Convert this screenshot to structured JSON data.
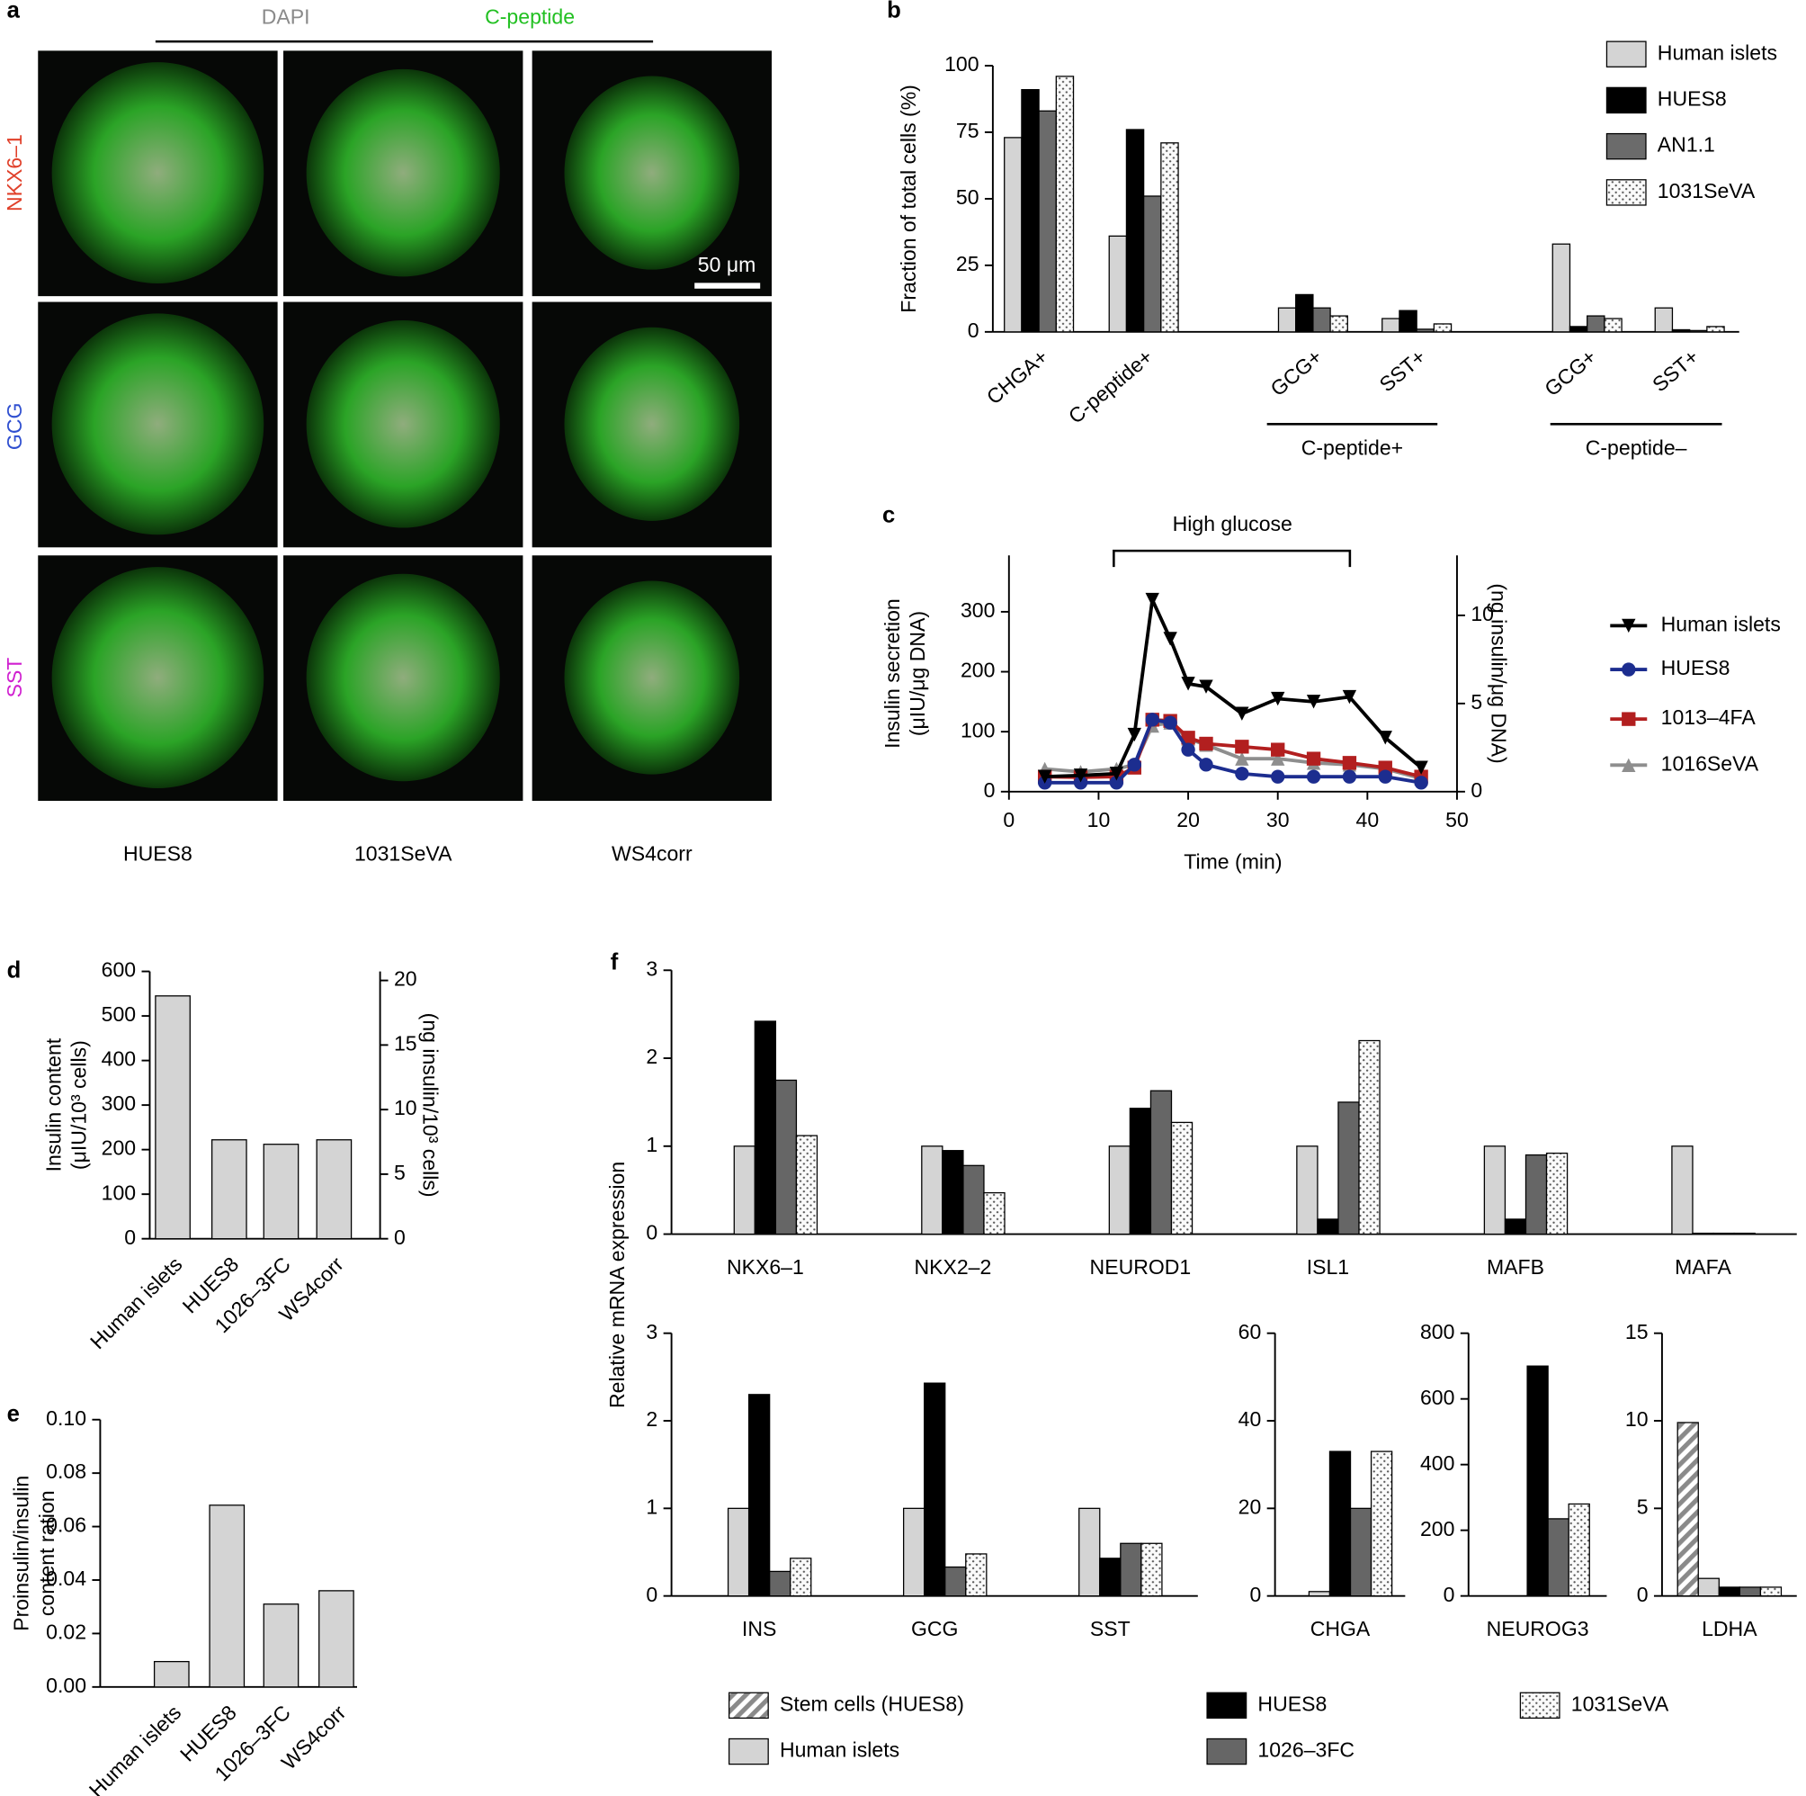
{
  "panel_a": {
    "label": "a",
    "headers": [
      "DAPI",
      "C-peptide"
    ],
    "rows": [
      "NKX6–1",
      "GCG",
      "SST"
    ],
    "columns": [
      "HUES8",
      "1031SeVA",
      "WS4corr"
    ],
    "scale_bar": "50 μm"
  },
  "chart_data": [
    {
      "type": "bar",
      "label": "b",
      "ylabel": "Fraction of  total cells (%)",
      "categories": [
        "CHGA+",
        "C-peptide+",
        "GCG+",
        "SST+",
        "GCG+",
        "SST+"
      ],
      "group_labels": [
        "C-peptide+",
        "C-peptide–"
      ],
      "ylim": [
        0,
        100
      ],
      "yticks": [
        0,
        25,
        50,
        75,
        100
      ],
      "series": [
        {
          "name": "Human islets",
          "color": "#d4d4d4",
          "values": [
            73,
            36,
            9,
            5,
            33,
            9
          ]
        },
        {
          "name": "HUES8",
          "color": "#000000",
          "values": [
            91,
            76,
            14,
            8,
            2,
            0.8
          ]
        },
        {
          "name": "AN1.1",
          "color": "#6b6b6b",
          "values": [
            83,
            51,
            9,
            1,
            6,
            0.5
          ]
        },
        {
          "name": "1031SeVA",
          "color": "#fafafa",
          "pattern": "dots",
          "values": [
            96,
            71,
            6,
            3,
            5,
            2
          ]
        }
      ]
    },
    {
      "type": "line",
      "label": "c",
      "annotation": "High glucose",
      "xlabel": "Time (min)",
      "ylabel": [
        "Insulin secretion",
        "(μIU/μg DNA)"
      ],
      "y2label": "(ng insulin/μg DNA)",
      "x": [
        4,
        8,
        12,
        14,
        16,
        18,
        20,
        22,
        26,
        30,
        34,
        38,
        42,
        46
      ],
      "xlim": [
        0,
        50
      ],
      "xticks": [
        0,
        10,
        20,
        30,
        40,
        50
      ],
      "ylim": [
        0,
        394
      ],
      "yticks": [
        0,
        100,
        200,
        300
      ],
      "y2lim": [
        0,
        13.4
      ],
      "y2ticks": [
        0,
        5,
        10
      ],
      "series": [
        {
          "name": "Human islets",
          "color": "#000000",
          "marker": "v",
          "values": [
            25,
            27,
            30,
            95,
            320,
            255,
            180,
            175,
            130,
            155,
            150,
            158,
            90,
            40
          ]
        },
        {
          "name": "HUES8",
          "color": "#1c2d8f",
          "marker": "o",
          "values": [
            15,
            15,
            15,
            45,
            120,
            115,
            70,
            45,
            30,
            25,
            25,
            25,
            25,
            15
          ]
        },
        {
          "name": "1013–4FA",
          "color": "#b21f1f",
          "marker": "s",
          "values": [
            25,
            24,
            25,
            40,
            120,
            118,
            90,
            80,
            75,
            70,
            55,
            48,
            40,
            25
          ]
        },
        {
          "name": "1016SeVA",
          "color": "#8e8e8e",
          "marker": "^",
          "values": [
            38,
            33,
            38,
            45,
            110,
            115,
            88,
            78,
            55,
            55,
            48,
            45,
            38,
            22
          ]
        }
      ]
    },
    {
      "type": "bar",
      "label": "d",
      "ylabel": [
        "Insulin content",
        "(μIU/10³ cells)"
      ],
      "y2label": "(ng insulin/10³ cells)",
      "categories": [
        "Human islets",
        "HUES8",
        "1026–3FC",
        "WS4corr"
      ],
      "ylim": [
        0,
        600
      ],
      "yticks": [
        0,
        100,
        200,
        300,
        400,
        500,
        600
      ],
      "y2lim": [
        0,
        20.7
      ],
      "y2ticks": [
        0,
        5,
        10,
        15,
        20
      ],
      "series": [
        {
          "color": "#d4d4d4",
          "values": [
            545,
            222,
            212,
            222
          ]
        }
      ]
    },
    {
      "type": "bar",
      "label": "e",
      "ylabel": [
        "Proinsulin/insulin",
        "content ration"
      ],
      "categories": [
        "Human islets",
        "HUES8",
        "1026–3FC",
        "WS4corr"
      ],
      "ylim": [
        0,
        0.1
      ],
      "yticks": [
        {
          "value": 0,
          "label": "0.00"
        },
        {
          "value": 0.02,
          "label": "0.02"
        },
        {
          "value": 0.04,
          "label": "0.04"
        },
        {
          "value": 0.06,
          "label": "0.06"
        },
        {
          "value": 0.08,
          "label": "0.08"
        },
        {
          "value": 0.1,
          "label": "0.10"
        }
      ],
      "series": [
        {
          "color": "#d4d4d4",
          "values": [
            0.0095,
            0.068,
            0.031,
            0.036
          ]
        }
      ]
    },
    {
      "type": "bar",
      "label": "f",
      "ylabel": "Relative mRNA expression",
      "categories": [
        "NKX6–1",
        "NKX2–2",
        "NEUROD1",
        "ISL1",
        "MAFB",
        "MAFA"
      ],
      "ylim": [
        0,
        3
      ],
      "yticks": [
        0,
        1,
        2,
        3
      ],
      "series": [
        {
          "name": "Stem cells (HUES8)",
          "color": "#ffffff",
          "pattern": "hatch",
          "values": [
            0,
            0,
            0,
            0,
            0,
            0
          ]
        },
        {
          "name": "Human islets",
          "color": "#d4d4d4",
          "values": [
            1,
            1,
            1,
            1,
            1,
            1
          ]
        },
        {
          "name": "HUES8",
          "color": "#000000",
          "values": [
            2.42,
            0.95,
            1.43,
            0.17,
            0.17,
            0.01
          ]
        },
        {
          "name": "1026–3FC",
          "color": "#666666",
          "values": [
            1.75,
            0.78,
            1.63,
            1.5,
            0.9,
            0.01
          ]
        },
        {
          "name": "1031SeVA",
          "color": "#fafafa",
          "pattern": "dots",
          "values": [
            1.12,
            0.47,
            1.27,
            2.2,
            0.92,
            0.01
          ]
        }
      ]
    },
    {
      "type": "bar",
      "categories": [
        "INS",
        "GCG",
        "SST"
      ],
      "ylim": [
        0,
        3
      ],
      "yticks": [
        0,
        1,
        2,
        3
      ],
      "series": [
        {
          "color": "#ffffff",
          "pattern": "hatch",
          "values": [
            0,
            0,
            0
          ]
        },
        {
          "color": "#d4d4d4",
          "values": [
            1,
            1,
            1
          ]
        },
        {
          "color": "#000000",
          "values": [
            2.3,
            2.43,
            0.43
          ]
        },
        {
          "color": "#666666",
          "values": [
            0.28,
            0.33,
            0.6
          ]
        },
        {
          "color": "#fafafa",
          "pattern": "dots",
          "values": [
            0.43,
            0.48,
            0.6
          ]
        }
      ]
    },
    {
      "type": "bar",
      "categories": [
        "CHGA"
      ],
      "ylim": [
        0,
        60
      ],
      "yticks": [
        0,
        20,
        40,
        60
      ],
      "series": [
        {
          "color": "#ffffff",
          "pattern": "hatch",
          "values": [
            0
          ]
        },
        {
          "color": "#d4d4d4",
          "values": [
            1
          ]
        },
        {
          "color": "#000000",
          "values": [
            33
          ]
        },
        {
          "color": "#666666",
          "values": [
            20
          ]
        },
        {
          "color": "#fafafa",
          "pattern": "dots",
          "values": [
            33
          ]
        }
      ]
    },
    {
      "type": "bar",
      "categories": [
        "NEUROG3"
      ],
      "ylim": [
        0,
        800
      ],
      "yticks": [
        0,
        200,
        400,
        600,
        800
      ],
      "series": [
        {
          "color": "#ffffff",
          "pattern": "hatch",
          "values": [
            0
          ]
        },
        {
          "color": "#d4d4d4",
          "values": [
            0
          ]
        },
        {
          "color": "#000000",
          "values": [
            700
          ]
        },
        {
          "color": "#666666",
          "values": [
            235
          ]
        },
        {
          "color": "#fafafa",
          "pattern": "dots",
          "values": [
            280
          ]
        }
      ]
    },
    {
      "type": "bar",
      "categories": [
        "LDHA"
      ],
      "ylim": [
        0,
        15
      ],
      "yticks": [
        0,
        5,
        10,
        15
      ],
      "series": [
        {
          "color": "#ffffff",
          "pattern": "hatch",
          "values": [
            9.9
          ]
        },
        {
          "color": "#d4d4d4",
          "values": [
            1
          ]
        },
        {
          "color": "#000000",
          "values": [
            0.5
          ]
        },
        {
          "color": "#666666",
          "values": [
            0.5
          ]
        },
        {
          "color": "#fafafa",
          "pattern": "dots",
          "values": [
            0.5
          ]
        }
      ]
    }
  ]
}
